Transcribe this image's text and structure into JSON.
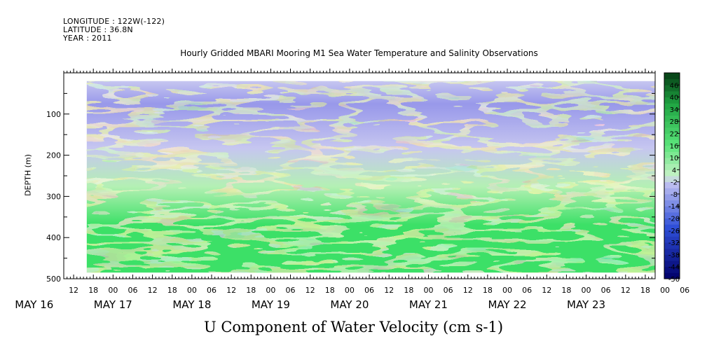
{
  "header": {
    "longitude": "LONGITUDE : 122W(-122)",
    "latitude": "LATITUDE : 36.8N",
    "year": "YEAR : 2011"
  },
  "chart_data": {
    "type": "heatmap",
    "title": "Hourly Gridded MBARI Mooring M1 Sea Water Temperature and Salinity Observations",
    "bottom_title": "U Component of Water Velocity (cm s-1)",
    "ylabel": "DEPTH (m)",
    "xlabel": "",
    "y_axis": {
      "range": [
        500,
        0
      ],
      "reversed": true,
      "ticks": [
        100,
        200,
        300,
        400,
        500
      ],
      "minor_step": 50
    },
    "x_axis": {
      "hour_tick_labels": [
        "12",
        "18",
        "00",
        "06",
        "12",
        "18",
        "00",
        "06",
        "12",
        "18",
        "00",
        "06",
        "12",
        "18",
        "00",
        "06",
        "12",
        "18",
        "00",
        "06",
        "12",
        "18",
        "00",
        "06",
        "12",
        "18",
        "00",
        "06",
        "12",
        "18",
        "00",
        "06"
      ],
      "hour_tick_start": "2011-05-16T12:00",
      "hour_tick_step_hours": 6,
      "day_labels": [
        "MAY 16",
        "MAY 17",
        "MAY 18",
        "MAY 19",
        "MAY 20",
        "MAY 21",
        "MAY 22",
        "MAY 23"
      ],
      "range": [
        "2011-05-16T09:00",
        "2011-05-23T21:00"
      ]
    },
    "data_extent": {
      "x": [
        "2011-05-16T16:00",
        "2011-05-23T21:00"
      ],
      "depth": [
        20,
        485
      ]
    },
    "colorbar": {
      "labels": [
        "46",
        "40",
        "34",
        "28",
        "22",
        "16",
        "10",
        "4",
        "-2",
        "-8",
        "-14",
        "-20",
        "-26",
        "-32",
        "-38",
        "-44",
        "-50"
      ],
      "min": -50,
      "max": 52,
      "step": 3
    },
    "colors": {
      "neg_light": "#c6c6f0",
      "neg_mid": "#9898ea",
      "neg_deep": "#3a54dc",
      "pos_light": "#b4f0b4",
      "pos_mid": "#3ce067",
      "pos_deep": "#1d9a41",
      "background": "#ffffff"
    }
  }
}
